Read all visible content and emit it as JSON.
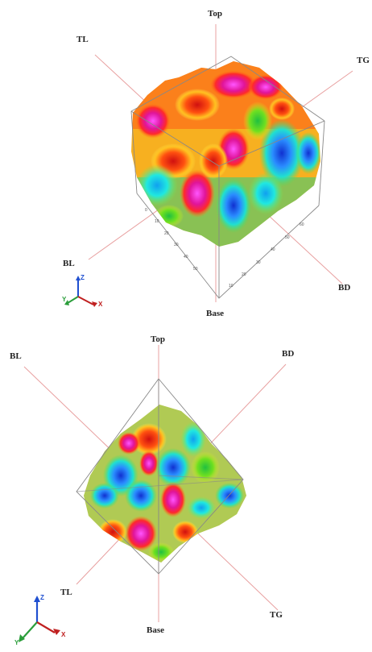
{
  "views": [
    {
      "labels": {
        "top": "Top",
        "base": "Base",
        "tl": "TL",
        "tg": "TG",
        "bl": "BL",
        "bd": "BD"
      },
      "axes": {
        "z": "Z",
        "y": "Y",
        "x": "X"
      }
    },
    {
      "labels": {
        "top": "Top",
        "base": "Base",
        "tl": "TL",
        "tg": "TG",
        "bl": "BL",
        "bd": "BD"
      },
      "axes": {
        "z": "Z",
        "y": "Y",
        "x": "X"
      }
    }
  ],
  "colors": {
    "ray_line": "#e8a0a0",
    "cube_edge": "#888888",
    "axis_z": "#1f4fd0",
    "axis_y": "#2a9d3a",
    "axis_x": "#c02020"
  }
}
